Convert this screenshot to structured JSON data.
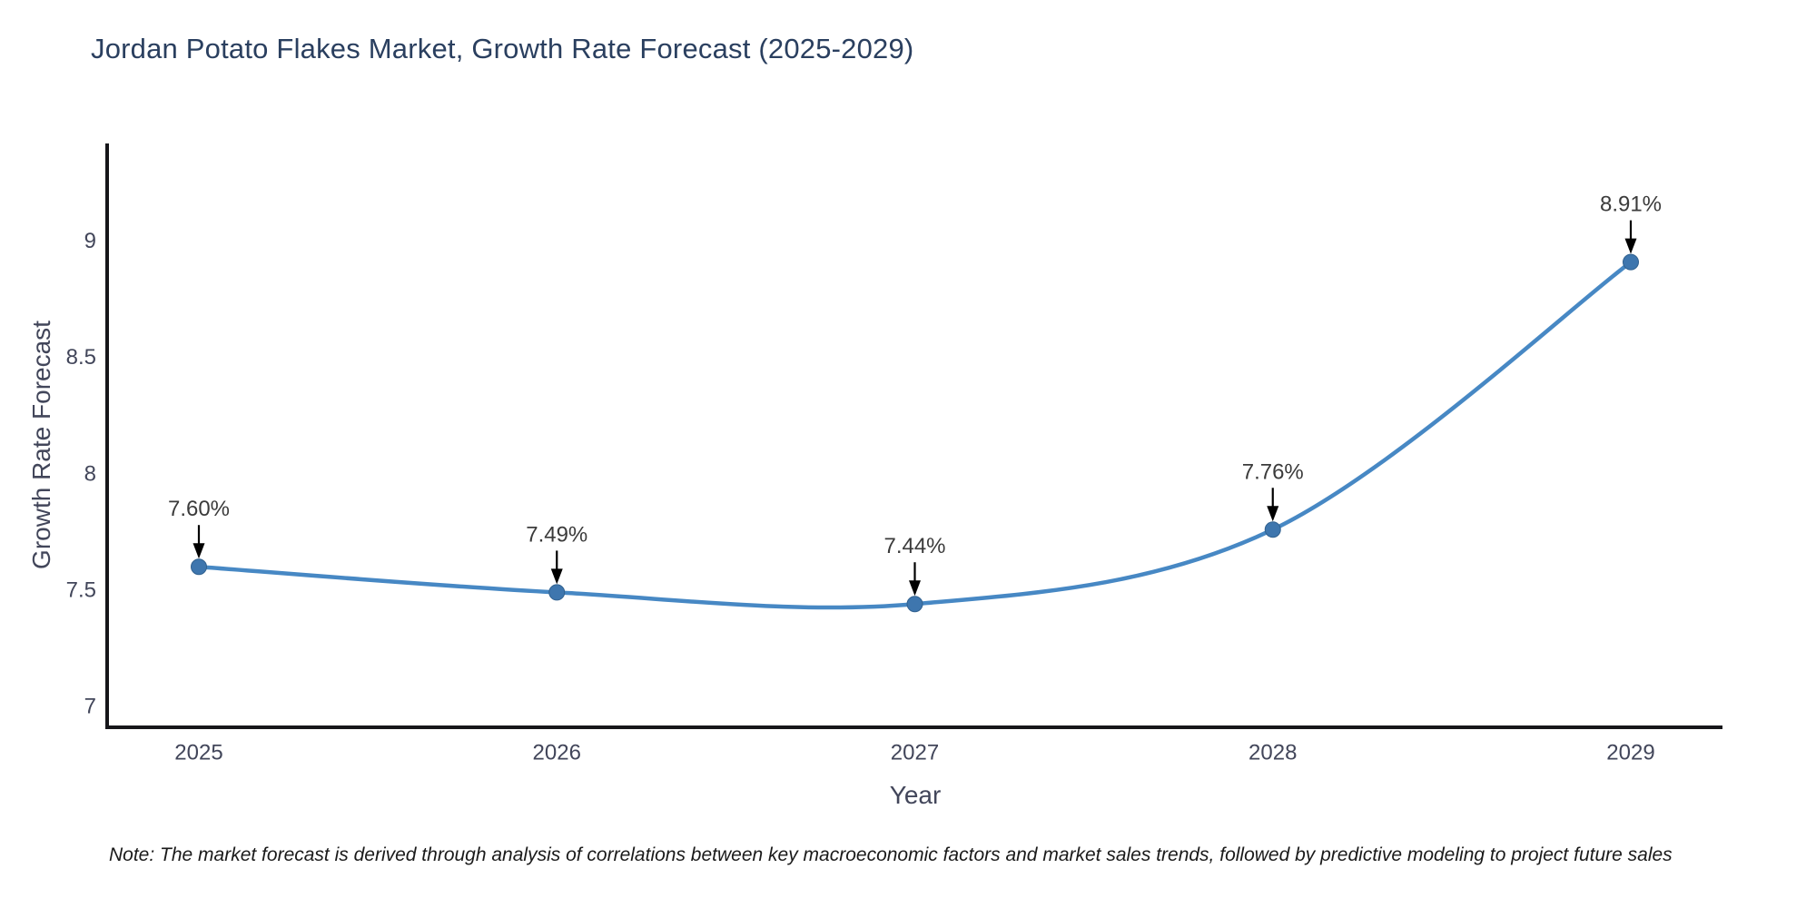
{
  "title": "Jordan Potato Flakes Market, Growth Rate Forecast (2025-2029)",
  "note": "Note: The market forecast is derived through analysis of correlations between key macroeconomic factors and market sales trends, followed by predictive modeling to project future sales",
  "chart_data": {
    "type": "line",
    "title": "Jordan Potato Flakes Market, Growth Rate Forecast (2025-2029)",
    "xlabel": "Year",
    "ylabel": "Growth Rate Forecast",
    "x": [
      "2025",
      "2026",
      "2027",
      "2028",
      "2029"
    ],
    "series": [
      {
        "name": "Growth Rate Forecast",
        "values": [
          7.6,
          7.49,
          7.44,
          7.76,
          8.91
        ]
      }
    ],
    "point_labels": [
      "7.60%",
      "7.49%",
      "7.44%",
      "7.76%",
      "8.91%"
    ],
    "yticks": [
      7,
      7.5,
      8,
      8.5,
      9
    ],
    "ytick_labels": [
      "7",
      "7.5",
      "8",
      "8.5",
      "9"
    ],
    "ylim": [
      6.91,
      9.42
    ],
    "line_shape": "spline",
    "grid": false,
    "legend": "none",
    "annotation_style": "arrow-down-to-point",
    "colors": {
      "line": "#4788c4",
      "marker_fill": "#3e76ae",
      "marker_edge": "#31618f",
      "arrow": "#000000",
      "title": "#2a3f5f",
      "axis_line": "#16161a",
      "tick_text": "#42465a",
      "axis_title_text": "#42465a",
      "point_label_text": "#3b3b3b",
      "note_text": "#1a1a1a",
      "background": "#ffffff"
    }
  }
}
